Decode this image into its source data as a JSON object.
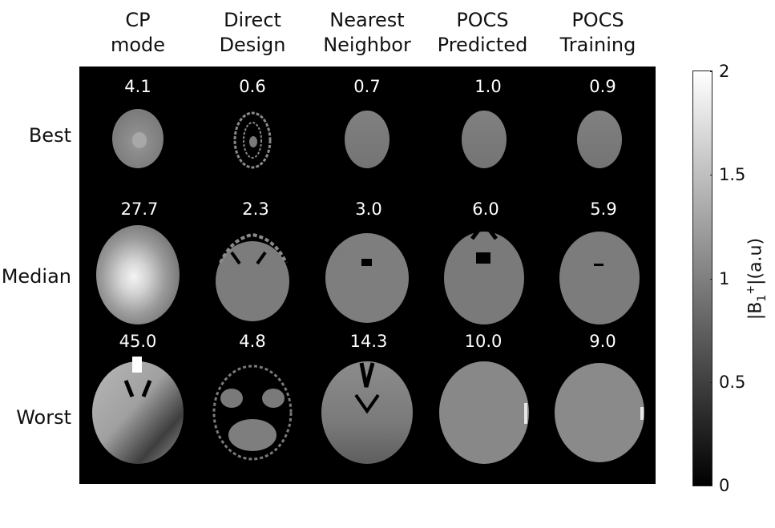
{
  "columns": [
    {
      "label": "CP\nmode"
    },
    {
      "label": "Direct\nDesign"
    },
    {
      "label": "Nearest\nNeighbor"
    },
    {
      "label": "POCS\nPredicted"
    },
    {
      "label": "POCS\nTraining"
    }
  ],
  "rows": [
    {
      "label": "Best",
      "values": [
        "4.1",
        "0.6",
        "0.7",
        "1.0",
        "0.9"
      ]
    },
    {
      "label": "Median",
      "values": [
        "27.7",
        "2.3",
        "3.0",
        "6.0",
        "5.9"
      ]
    },
    {
      "label": "Worst",
      "values": [
        "45.0",
        "4.8",
        "14.3",
        "10.0",
        "9.0"
      ]
    }
  ],
  "colorbar": {
    "ticks": [
      "0",
      "0.5",
      "1",
      "1.5",
      "2"
    ],
    "range": [
      0,
      2
    ],
    "colormap": "gray",
    "label": "|B1+|(a.u)",
    "label_main": "|B",
    "label_sub": "1",
    "label_sup": "+",
    "label_tail": "|(a.u)"
  },
  "colors": {
    "panel_background": "#000000",
    "value_text": "#ffffff"
  }
}
